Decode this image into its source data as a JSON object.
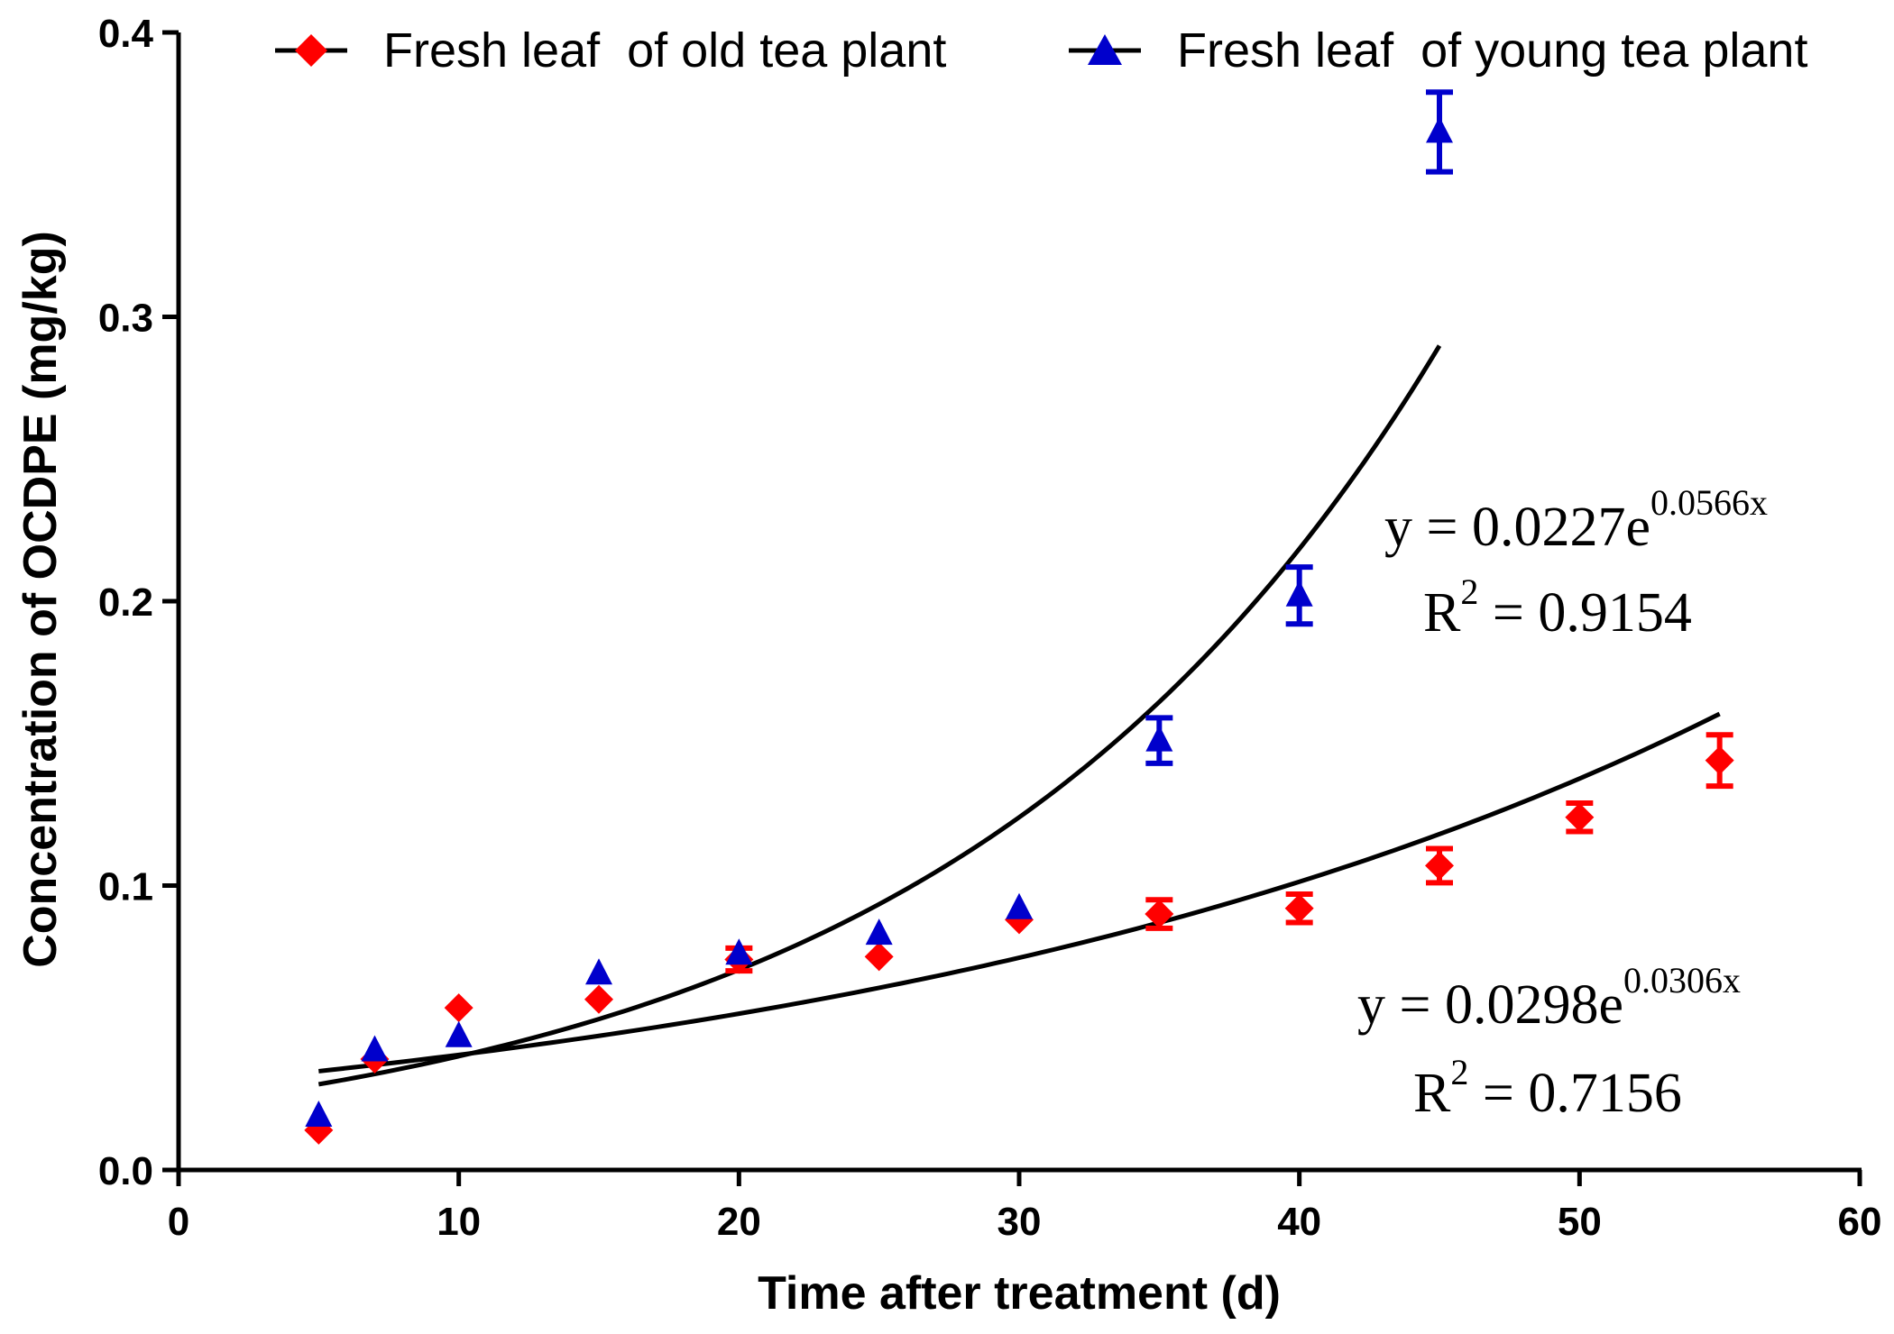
{
  "chart_data": {
    "type": "scatter",
    "xlabel": "Time after treatment (d)",
    "ylabel": "Concentration of OCDPE (mg/kg)",
    "xlim": [
      0,
      60
    ],
    "ylim": [
      0,
      0.4
    ],
    "xticks": [
      0,
      10,
      20,
      30,
      40,
      50,
      60
    ],
    "yticks": [
      0.0,
      0.1,
      0.2,
      0.3,
      0.4
    ],
    "xtick_labels": [
      "0",
      "10",
      "20",
      "30",
      "40",
      "50",
      "60"
    ],
    "ytick_labels": [
      "0.0",
      "0.1",
      "0.2",
      "0.3",
      "0.4"
    ],
    "series": [
      {
        "name": "Fresh leaf  of old tea plant",
        "marker": "diamond",
        "color": "#ff0000",
        "x": [
          5,
          7,
          10,
          15,
          20,
          25,
          30,
          35,
          40,
          45,
          50,
          55
        ],
        "y": [
          0.014,
          0.039,
          0.057,
          0.06,
          0.074,
          0.075,
          0.088,
          0.09,
          0.092,
          0.107,
          0.124,
          0.144
        ],
        "err": [
          0,
          0,
          0,
          0,
          0.004,
          0,
          0,
          0.005,
          0.005,
          0.006,
          0.005,
          0.009
        ],
        "fit": {
          "a": 0.0298,
          "b": 0.0306,
          "range": [
            5,
            55
          ],
          "equation_prefix": "y = 0.0298e",
          "equation_exponent": "0.0306x",
          "r2_prefix": "R",
          "r2_power": "2",
          "r2_value": " = 0.7156"
        }
      },
      {
        "name": "Fresh leaf  of young tea plant",
        "marker": "triangle",
        "color": "#0000cc",
        "x": [
          5,
          7,
          10,
          15,
          20,
          25,
          30,
          35,
          40,
          45
        ],
        "y": [
          0.019,
          0.042,
          0.047,
          0.069,
          0.076,
          0.083,
          0.092,
          0.151,
          0.202,
          0.365
        ],
        "err": [
          0,
          0,
          0,
          0,
          0,
          0,
          0,
          0.008,
          0.01,
          0.014
        ],
        "fit": {
          "a": 0.0227,
          "b": 0.0566,
          "range": [
            5,
            45
          ],
          "equation_prefix": "y = 0.0227e",
          "equation_exponent": "0.0566x",
          "r2_prefix": "R",
          "r2_power": "2",
          "r2_value": " = 0.9154"
        }
      }
    ]
  }
}
